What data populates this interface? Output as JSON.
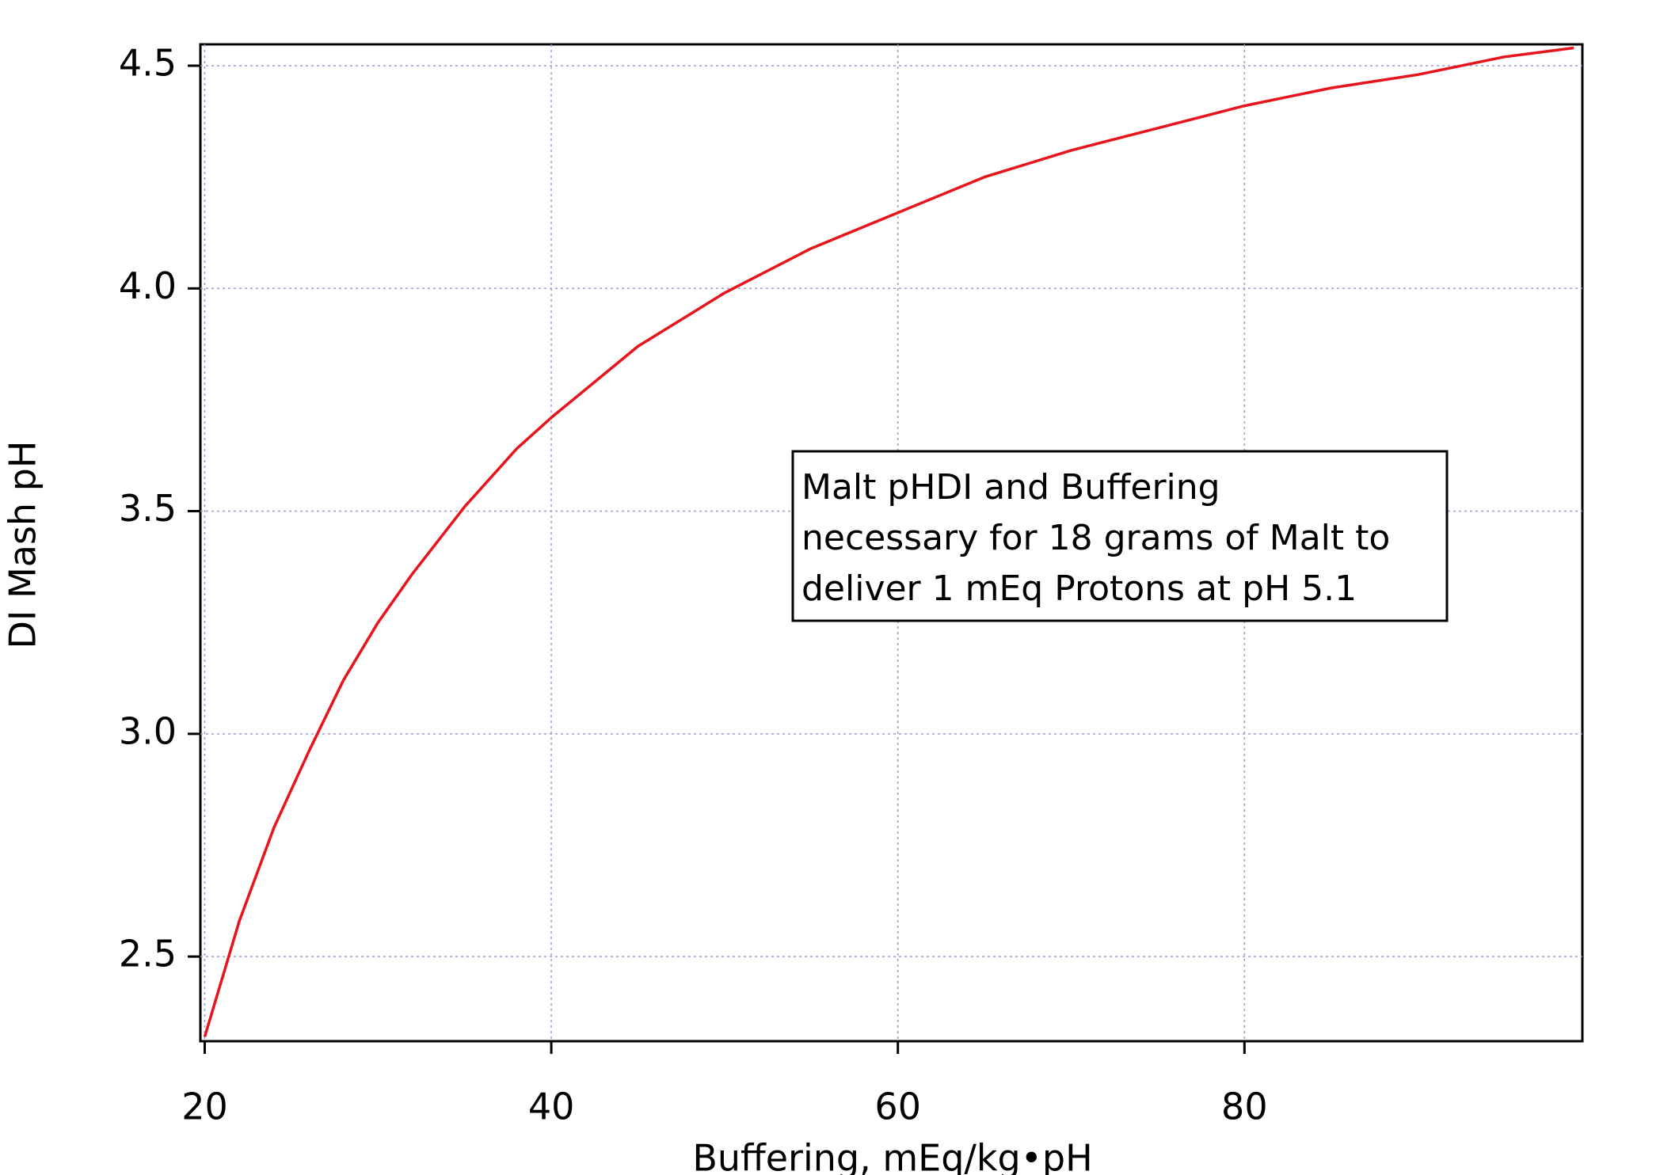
{
  "chart_data": {
    "type": "line",
    "x_label": "Buffering, mEq/kg•pH",
    "y_label": "DI Mash pH",
    "annotation": [
      "Malt pHDI and Buffering",
      "necessary for 18 grams of Malt to",
      "deliver 1 mEq Protons at pH 5.1"
    ],
    "x": [
      20,
      22,
      24,
      26,
      28,
      30,
      32,
      35,
      38,
      40,
      45,
      50,
      55,
      60,
      65,
      70,
      75,
      80,
      85,
      90,
      95,
      99
    ],
    "series": [
      {
        "color": "#e8141c",
        "values": [
          2.32,
          2.58,
          2.79,
          2.96,
          3.12,
          3.25,
          3.36,
          3.51,
          3.64,
          3.71,
          3.87,
          3.99,
          4.09,
          4.17,
          4.25,
          4.31,
          4.36,
          4.41,
          4.45,
          4.48,
          4.52,
          4.54
        ]
      }
    ],
    "xlim": [
      19.75,
      99.5
    ],
    "ylim": [
      2.31,
      4.548
    ],
    "xticks": [
      20,
      40,
      60,
      80
    ],
    "yticks": [
      2.5,
      {
        "value": 3,
        "label": "3.0"
      },
      3.5,
      {
        "value": 4,
        "label": "4.0"
      },
      4.5
    ],
    "grid": true,
    "grid_color": "#9a9ad6"
  }
}
